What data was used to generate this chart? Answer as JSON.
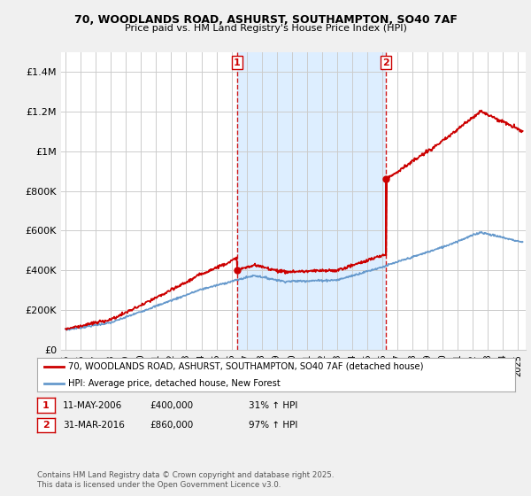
{
  "title1": "70, WOODLANDS ROAD, ASHURST, SOUTHAMPTON, SO40 7AF",
  "title2": "Price paid vs. HM Land Registry's House Price Index (HPI)",
  "ylabel_ticks": [
    "£0",
    "£200K",
    "£400K",
    "£600K",
    "£800K",
    "£1M",
    "£1.2M",
    "£1.4M"
  ],
  "ytick_vals": [
    0,
    200000,
    400000,
    600000,
    800000,
    1000000,
    1200000,
    1400000
  ],
  "ylim": [
    0,
    1500000
  ],
  "xlim_start": 1994.7,
  "xlim_end": 2025.5,
  "purchase1_x": 2006.36,
  "purchase1_y": 400000,
  "purchase2_x": 2016.25,
  "purchase2_y": 860000,
  "legend_label1": "70, WOODLANDS ROAD, ASHURST, SOUTHAMPTON, SO40 7AF (detached house)",
  "legend_label2": "HPI: Average price, detached house, New Forest",
  "annotation1_label": "1",
  "annotation2_label": "2",
  "line1_color": "#cc0000",
  "line2_color": "#6699cc",
  "vline_color": "#cc0000",
  "shade_color": "#ddeeff",
  "bg_color": "#f0f0f0",
  "plot_bg_color": "#ffffff",
  "grid_color": "#cccccc"
}
